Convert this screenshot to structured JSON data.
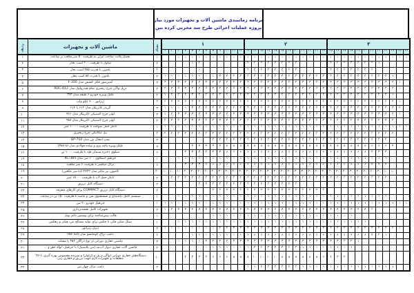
{
  "colors": {
    "header_bg": "#c9f0ef",
    "title_text": "#1f1fa8",
    "grid_text": "#3a3a3a",
    "border": "#000000",
    "page_bg": "#ffffff"
  },
  "title": {
    "line1": "برنامه زمانبندی ماشین آلات و تجهیزات مورد نیاز",
    "line2": "پروژه عملیات اجرائی طرح سد مخزنی کرده بین"
  },
  "table": {
    "corner": {
      "row_no": "ردیف",
      "name": "ماشین آلات و تجهیزات",
      "qty": "تعداد"
    },
    "groups": [
      {
        "label": "۱"
      },
      {
        "label": "۲"
      },
      {
        "label": "۳"
      }
    ],
    "columns": [
      "۱",
      "۲",
      "۳",
      "۴",
      "۵",
      "۶",
      "۷",
      "۸",
      "۹",
      "۱۰",
      "۱۱",
      "۱۲",
      "۱۳",
      "۱۴",
      "۱۵",
      "۱۶",
      "۱۷",
      "۱۸",
      "۱۹",
      "۲۰",
      "۲۱",
      "۲۲",
      "۲۳",
      "۲۴",
      "۲۵",
      "۲۶",
      "۲۷",
      "۲۸",
      "۲۹",
      "۳۰",
      "۳۱",
      "۳۲",
      "۳۳",
      "۳۴",
      "۳۵",
      "۳۶"
    ],
    "rows": [
      {
        "no": "۱",
        "name": "بچینگ پلانت ساخت ایران به ظرفیت ۵۰ متر مکعب بر ساعت",
        "qty": "۱",
        "spans": [
          {
            "s": 3,
            "e": 36,
            "v": "۱"
          }
        ]
      },
      {
        "no": "۲",
        "name": "شاول با ظرفیت ۲۰۰ اسب بخار",
        "qty": "۲",
        "spans": [
          {
            "s": 5,
            "e": 5,
            "v": "۱"
          },
          {
            "s": 6,
            "e": 6,
            "v": "۲"
          },
          {
            "s": 13,
            "e": 20,
            "v": "۲"
          },
          {
            "s": 25,
            "e": 31,
            "v": "۲"
          },
          {
            "s": 32,
            "e": 32,
            "v": "۱"
          }
        ]
      },
      {
        "no": "۳",
        "name": "بلدوزر با قدرت ۲۵۵ اسب بخار",
        "qty": "۲",
        "spans": [
          {
            "s": 6,
            "e": 6,
            "v": "۱"
          },
          {
            "s": 13,
            "e": 20,
            "v": "۲"
          },
          {
            "s": 25,
            "e": 31,
            "v": "۲"
          }
        ]
      },
      {
        "no": "۴",
        "name": "بلدوزر با قدرت ۸۵ اسب بخار",
        "qty": "۲",
        "spans": [
          {
            "s": 1,
            "e": 8,
            "v": "۱"
          },
          {
            "s": 9,
            "e": 33,
            "v": "۲"
          },
          {
            "s": 34,
            "e": 34,
            "v": "۱"
          }
        ]
      },
      {
        "no": "۵",
        "name": "کمپرسور قابل کشش مدل F-350",
        "qty": "۳",
        "spans": [
          {
            "s": 1,
            "e": 33,
            "v": "۳"
          },
          {
            "s": 34,
            "e": 34,
            "v": "۲"
          },
          {
            "s": 35,
            "e": 35,
            "v": "۱"
          }
        ]
      },
      {
        "no": "۶",
        "name": "دریل واگن چرخ زنجیری تمام هیدرولیک مدل ROC-612",
        "qty": "۳",
        "spans": [
          {
            "s": 1,
            "e": 33,
            "v": "۳"
          },
          {
            "s": 34,
            "e": 34,
            "v": "۲"
          },
          {
            "s": 35,
            "e": 35,
            "v": "۱"
          }
        ]
      },
      {
        "no": "۷",
        "name": "غلتک ویبره خودرو ۶ طبقه مدل ۳۹۳",
        "qty": "۲",
        "spans": [
          {
            "s": 1,
            "e": 1,
            "v": "۱"
          },
          {
            "s": 2,
            "e": 33,
            "v": "۲"
          },
          {
            "s": 34,
            "e": 34,
            "v": "۱"
          }
        ]
      },
      {
        "no": "۸",
        "name": "ژنراتور ۴۰۰ کیلو وات",
        "qty": "۲",
        "spans": [
          {
            "s": 1,
            "e": 34,
            "v": "۲"
          },
          {
            "s": 35,
            "e": 35,
            "v": "۱"
          }
        ]
      },
      {
        "no": "۹",
        "name": "گریدر کاترپیلار مدل ۶۱۲ یا ۶۱۴",
        "qty": "۳",
        "spans": [
          {
            "s": 1,
            "e": 4,
            "v": "۱"
          },
          {
            "s": 5,
            "e": 34,
            "v": "۳"
          },
          {
            "s": 35,
            "e": 35,
            "v": "۲"
          }
        ]
      },
      {
        "no": "۱۰",
        "name": "لودر چرخ لاستیکی کاترپیلار مدل ۹۶۶",
        "qty": "۳",
        "spans": [
          {
            "s": 1,
            "e": 1,
            "v": "۱"
          },
          {
            "s": 2,
            "e": 2,
            "v": "۲"
          },
          {
            "s": 3,
            "e": 33,
            "v": "۳"
          },
          {
            "s": 34,
            "e": 34,
            "v": "۲"
          },
          {
            "s": 35,
            "e": 35,
            "v": "۱"
          }
        ]
      },
      {
        "no": "۱۱",
        "name": "لودر چرخ لاستیکی کاترپیلار مدل ۹۸۸",
        "qty": "۲",
        "spans": [
          {
            "s": 1,
            "e": 34,
            "v": "۲"
          }
        ]
      },
      {
        "no": "۱۲",
        "name": "تانکر حمل سوخت با ظرفیت ۱۰۰۰۰ لیتر",
        "qty": "۱",
        "spans": [
          {
            "s": 1,
            "e": 36,
            "v": "۱"
          }
        ]
      },
      {
        "no": "۱۳",
        "name": "بیل مکانیکی چرخ زنجیری",
        "qty": "۲",
        "spans": [
          {
            "s": 1,
            "e": 34,
            "v": "۲"
          }
        ]
      },
      {
        "no": "۱۴",
        "name": "پمپ انتقال بتن مدل BP-750",
        "qty": "۲",
        "spans": [
          {
            "s": 8,
            "e": 33,
            "v": "۲"
          }
        ]
      },
      {
        "no": "۱۵",
        "name": "غلتک ویبره پاچه بزی و ساده فولادی مدل (۸-۳۵۷)",
        "qty": "۸",
        "spans": [
          {
            "s": 5,
            "e": 9,
            "v": "۴"
          },
          {
            "s": 10,
            "e": 30,
            "v": "۸"
          },
          {
            "s": 31,
            "e": 33,
            "v": "۶"
          },
          {
            "s": 34,
            "e": 34,
            "v": "۴"
          }
        ]
      },
      {
        "no": "۱۶",
        "name": "سیلوی ذخیره سیمان فله با ظرفیت ۱۰۰۰ تن",
        "qty": "۶",
        "spans": [
          {
            "s": 4,
            "e": 9,
            "v": "۳"
          },
          {
            "s": 10,
            "e": 30,
            "v": "۶"
          },
          {
            "s": 31,
            "e": 33,
            "v": "۳"
          }
        ]
      },
      {
        "no": "۱۷",
        "name": "جرثقیل اسکاوی ۱۰۰ تنی مدل KC-385",
        "qty": "۱",
        "spans": [
          {
            "s": 3,
            "e": 33,
            "v": "۱"
          }
        ]
      },
      {
        "no": "۱۸",
        "name": "تراک میکسر با ظرفیت ۶ متر مکعب",
        "qty": "۶",
        "spans": [
          {
            "s": 4,
            "e": 6,
            "v": "۳"
          },
          {
            "s": 7,
            "e": 30,
            "v": "۶"
          },
          {
            "s": 31,
            "e": 33,
            "v": "۴"
          }
        ]
      },
      {
        "no": "۱۹",
        "name": "کامیون بنز مایلر مدل ۲۶۲۳ (ده متر مکعبی)",
        "qty": "۳۰",
        "spans": [
          {
            "s": 1,
            "e": 3,
            "v": "۱۰"
          },
          {
            "s": 4,
            "e": 8,
            "v": "۲۰"
          },
          {
            "s": 9,
            "e": 28,
            "v": "۳۰"
          },
          {
            "s": 29,
            "e": 32,
            "v": "۲۰"
          },
          {
            "s": 33,
            "e": 34,
            "v": "۱۰"
          }
        ]
      },
      {
        "no": "۲۰",
        "name": "تانکر حمل آب با ظرفیت ۱۵۰۰۰ لیتر",
        "qty": "۲",
        "spans": [
          {
            "s": 2,
            "e": 33,
            "v": "۲"
          }
        ]
      },
      {
        "no": "۲۱",
        "name": "دستگاه کابل تزریق",
        "qty": "۲",
        "spans": [
          {
            "s": 6,
            "e": 20,
            "v": "۲"
          }
        ]
      },
      {
        "no": "۲۲",
        "name": "دستگاه کابل تزریق COMPACT برای کارهای متفرقه",
        "qty": "۲",
        "spans": [
          {
            "s": 8,
            "e": 24,
            "v": "۲"
          }
        ]
      },
      {
        "no": "۲۳",
        "name": "سیستم کامل دانه‌بندی و شستشوی شن و ماسه با ظرفیت ۱۵۰ تن در ساعت",
        "qty": "۱",
        "spans": [
          {
            "s": 3,
            "e": 33,
            "v": "۱"
          }
        ]
      },
      {
        "no": "۲۴",
        "name": "جرثقیل خودرو ۲۰ تنی",
        "qty": "۱",
        "spans": [
          {
            "s": 1,
            "e": 36,
            "v": "۱"
          }
        ]
      },
      {
        "no": "۲۵",
        "name": "تجهیزات کامل نقشه‌برداری",
        "qty": "۴",
        "spans": [
          {
            "s": 1,
            "e": 1,
            "v": "۱"
          },
          {
            "s": 2,
            "e": 2,
            "v": "۲"
          },
          {
            "s": 3,
            "e": 30,
            "v": "۴"
          },
          {
            "s": 31,
            "e": 31,
            "v": "۲"
          }
        ]
      },
      {
        "no": "۲۶",
        "name": "قالب پیش‌ساخته برای پوشش دائم تونل",
        "qty": "۱",
        "spans": [
          {
            "s": 8,
            "e": 28,
            "v": "۱"
          }
        ]
      },
      {
        "no": "۲۷",
        "name": "سنگ شکن فکی با چکش برای تولید مصالح بتن، فیلتر و زهکش",
        "qty": "۱",
        "spans": [
          {
            "s": 3,
            "e": 30,
            "v": "۱"
          }
        ]
      },
      {
        "no": "۲۸",
        "name": "دیزل ژنراتور",
        "qty": "۳",
        "spans": [
          {
            "s": 1,
            "e": 8,
            "v": "۱"
          },
          {
            "s": 9,
            "e": 10,
            "v": "۲"
          },
          {
            "s": 11,
            "e": 33,
            "v": "۳"
          },
          {
            "s": 34,
            "e": 34,
            "v": "۲"
          },
          {
            "s": 35,
            "e": 35,
            "v": "۱"
          }
        ]
      },
      {
        "no": "۲۹",
        "name": "دامپ تراک کوماتسو مدل HD-325",
        "qty": "۶",
        "spans": [
          {
            "s": 5,
            "e": 12,
            "v": "۱"
          },
          {
            "s": 13,
            "e": 30,
            "v": "۶"
          },
          {
            "s": 31,
            "e": 31,
            "v": "۴"
          },
          {
            "s": 32,
            "e": 32,
            "v": "۲"
          },
          {
            "s": 33,
            "e": 33,
            "v": "۱"
          }
        ]
      },
      {
        "no": "۳۰",
        "name": "ماشین حفاری دورانی از نوع دراگان ۳۵۲ یا مشابه",
        "qty": "۳",
        "spans": [
          {
            "s": 3,
            "e": 6,
            "v": "۱"
          },
          {
            "s": 7,
            "e": 10,
            "v": "۲"
          },
          {
            "s": 11,
            "e": 27,
            "v": "۳"
          },
          {
            "s": 28,
            "e": 28,
            "v": "۲"
          },
          {
            "s": 29,
            "e": 29,
            "v": "۱"
          }
        ]
      },
      {
        "no": "۳۱",
        "name": "ماشین آلات حفاری دیوار آب‌بند (بتن پلاستیک) با جرثقیل، لوله حفر و ...",
        "qty": "۲",
        "spans": [
          {
            "s": 7,
            "e": 13,
            "v": "۱"
          },
          {
            "s": 14,
            "e": 20,
            "v": "۲"
          },
          {
            "s": 21,
            "e": 28,
            "v": "۱"
          }
        ]
      },
      {
        "no": "۳۲",
        "name": "دستگاه‌های حفاری دورانی (واگن دریل و کراولر) و سرنده مخصوص بهره گیری تا ۴۶°",
        "name2": "متعلقات و تجهیزات لازم جهت تزریق و حفاری زنی",
        "qty": "۱۰",
        "tall": true,
        "spans": [
          {
            "s": 4,
            "e": 4,
            "v": "۲"
          },
          {
            "s": 5,
            "e": 6,
            "v": "۳"
          },
          {
            "s": 7,
            "e": 7,
            "v": "۴"
          },
          {
            "s": 8,
            "e": 10,
            "v": "۶"
          },
          {
            "s": 11,
            "e": 13,
            "v": "۸"
          },
          {
            "s": 14,
            "e": 17,
            "v": "۱۰"
          },
          {
            "s": 18,
            "e": 23,
            "v": "۸"
          },
          {
            "s": 24,
            "e": 24,
            "v": "۶"
          },
          {
            "s": 25,
            "e": 25,
            "v": "۴"
          },
          {
            "s": 26,
            "e": 26,
            "v": "۳"
          },
          {
            "s": 27,
            "e": 27,
            "v": "۲"
          }
        ]
      },
      {
        "no": "۳۳",
        "name": "دامپ تراک چهار تنی",
        "qty": "۲",
        "spans": [
          {
            "s": 13,
            "e": 14,
            "v": "۱"
          },
          {
            "s": 15,
            "e": 20,
            "v": "۲"
          },
          {
            "s": 21,
            "e": 34,
            "v": "۱"
          }
        ]
      }
    ]
  }
}
